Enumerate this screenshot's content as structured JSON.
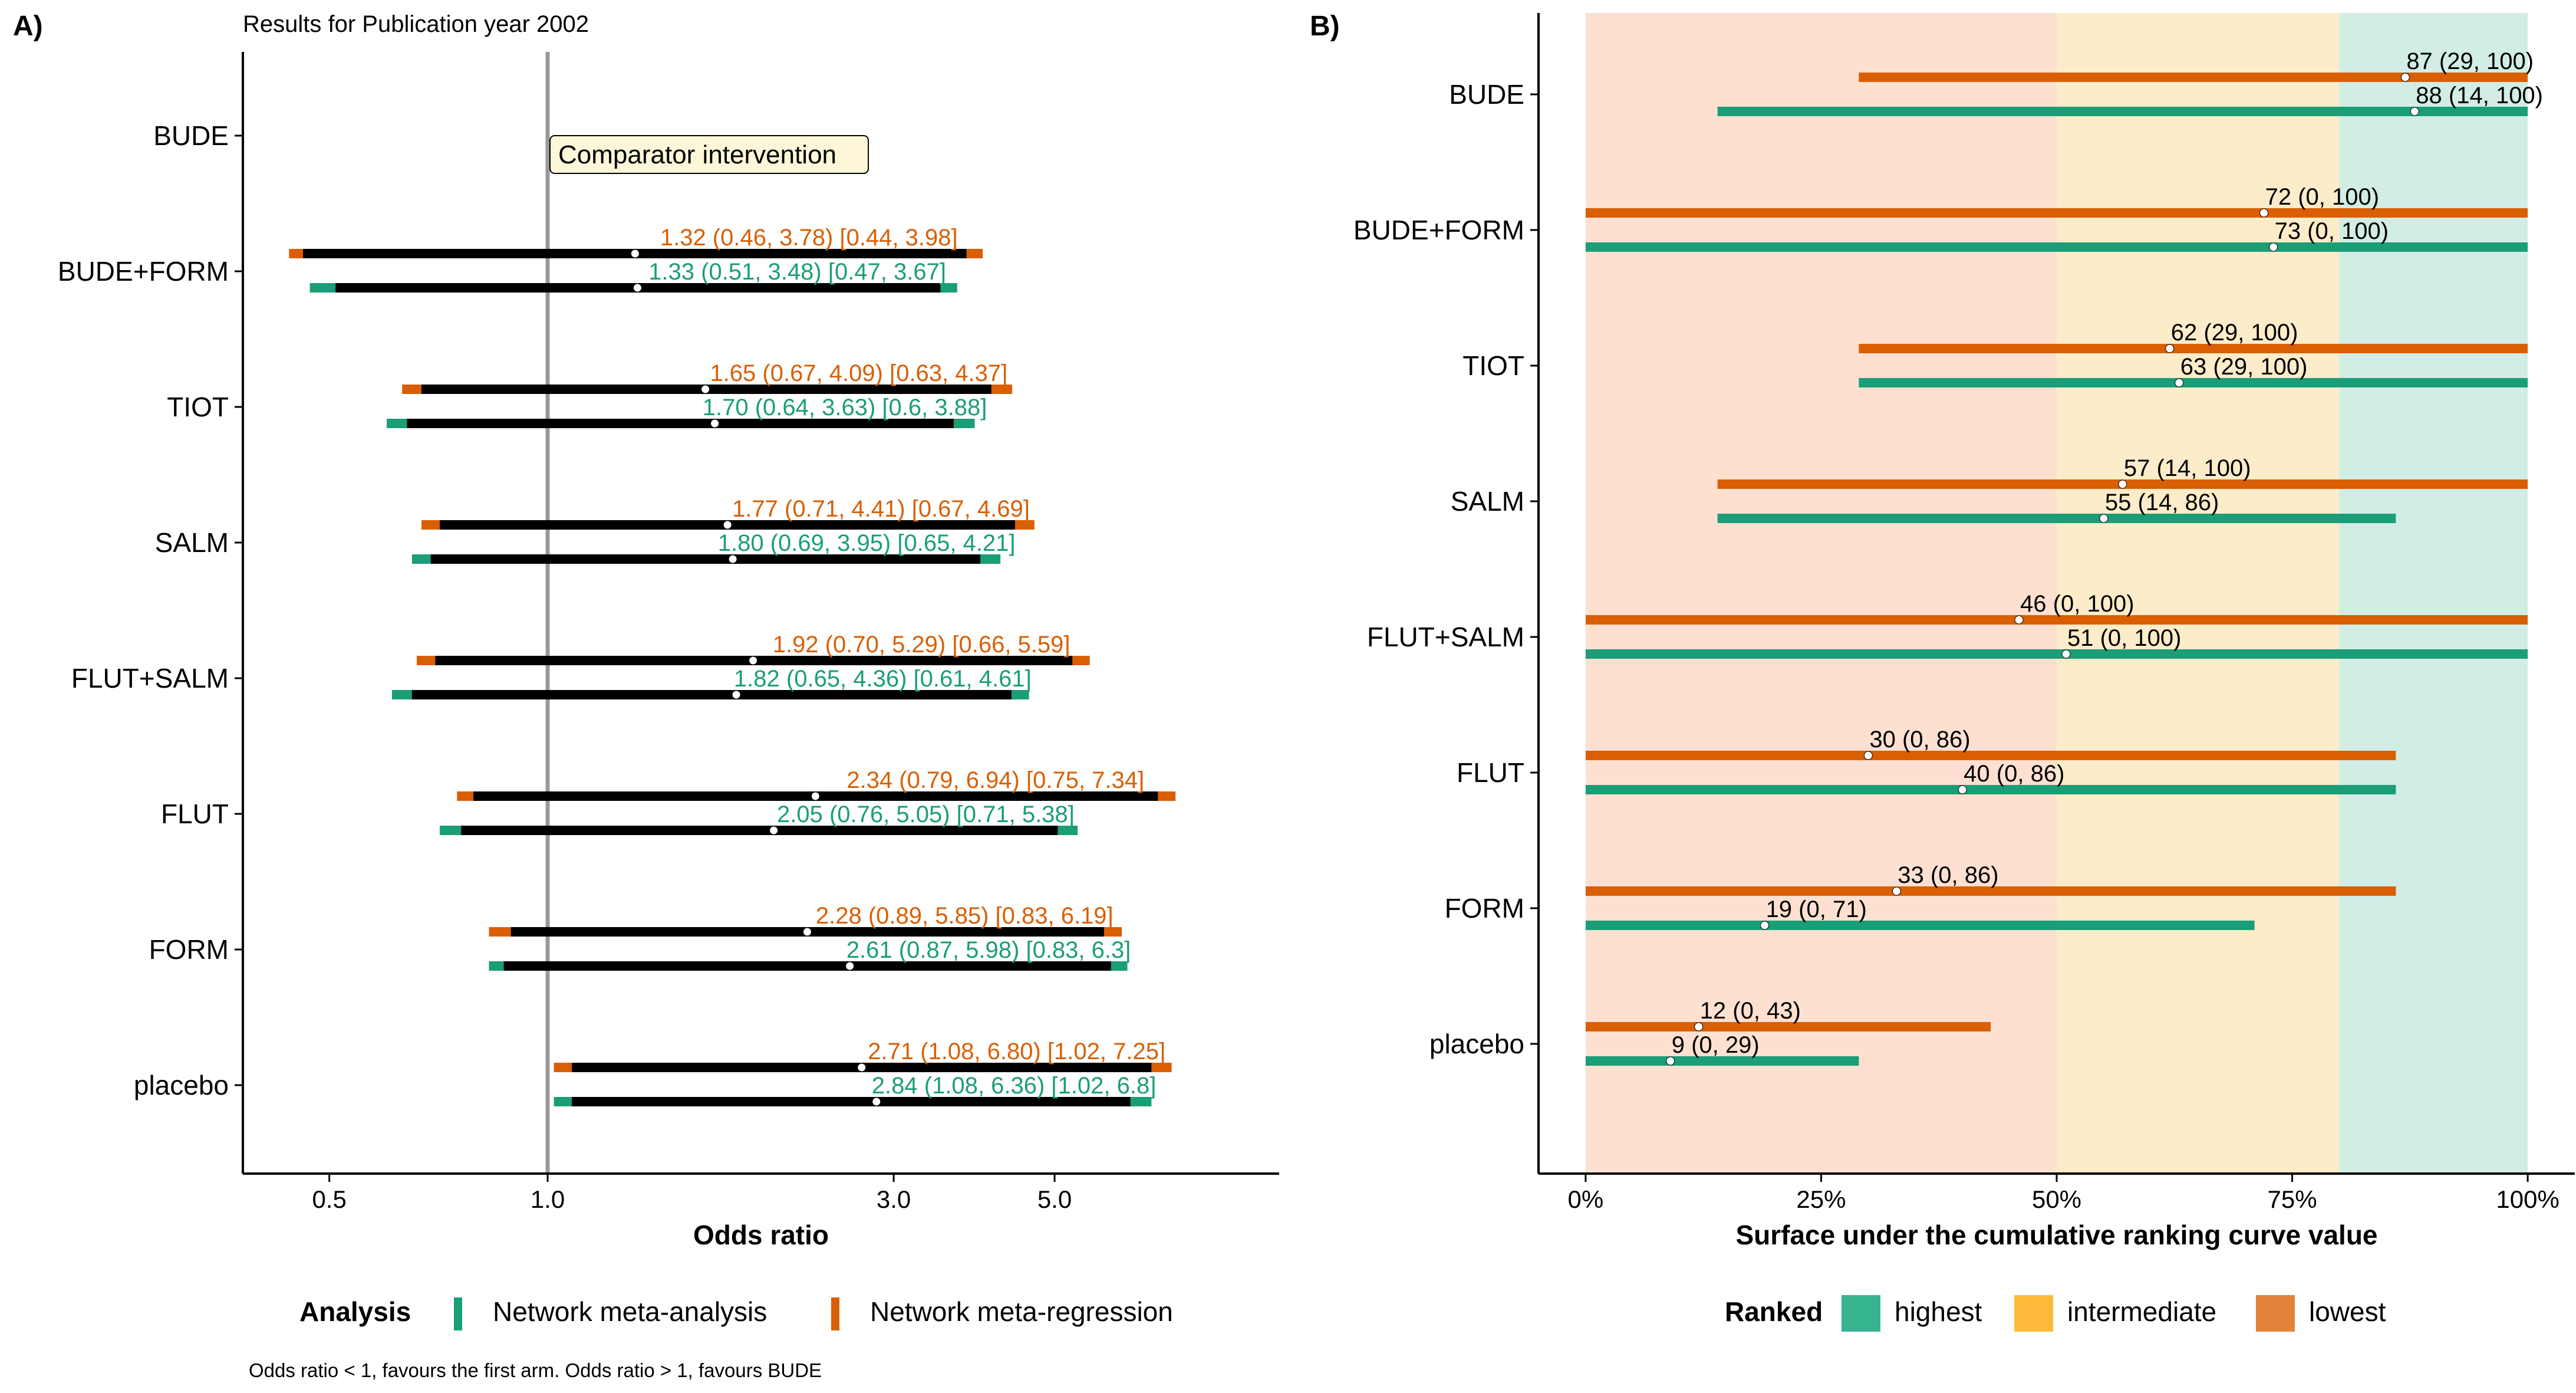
{
  "colors": {
    "nma": "#1a9e77",
    "nmr": "#d95f02",
    "credible": "#000000",
    "highest_zone": "#d1ede5",
    "intermediate_zone": "#fcecc9",
    "lowest_zone": "#fde0d0",
    "highest_key": "#36b38f",
    "intermediate_key": "#fdba3a",
    "lowest_key": "#e3843c",
    "ref_line": "#999999",
    "label_box": "#fdf6d9"
  },
  "panel_a": {
    "tag": "A)",
    "subtitle": "Results for Publication year 2002",
    "xlabel": "Odds ratio",
    "comparator_label": "Comparator intervention",
    "footnote": "Odds ratio < 1, favours the first arm. Odds ratio > 1, favours BUDE"
  },
  "panel_b": {
    "tag": "B)",
    "xlabel": "Surface under the cumulative ranking curve value"
  },
  "legend_a": {
    "title": "Analysis",
    "items": [
      {
        "label": "Network meta-analysis",
        "color_key": "nma"
      },
      {
        "label": "Network meta-regression",
        "color_key": "nmr"
      }
    ]
  },
  "legend_b": {
    "title": "Ranked",
    "items": [
      {
        "label": "highest",
        "color_key": "highest_key"
      },
      {
        "label": "intermediate",
        "color_key": "intermediate_key"
      },
      {
        "label": "lowest",
        "color_key": "lowest_key"
      }
    ]
  },
  "chart_data": [
    {
      "type": "forest",
      "scale": "log",
      "xlim": [
        0.38,
        10.2
      ],
      "xticks": [
        0.5,
        1.0,
        3.0,
        5.0
      ],
      "xtick_labels": [
        "0.5",
        "1.0",
        "3.0",
        "5.0"
      ],
      "reference_value": 1.0,
      "xlabel": "Odds ratio",
      "categories": [
        "BUDE",
        "BUDE+FORM",
        "TIOT",
        "SALM",
        "FLUT+SALM",
        "FLUT",
        "FORM",
        "placebo"
      ],
      "series": [
        {
          "name": "Network meta-regression",
          "color_key": "nmr",
          "points": [
            null,
            {
              "est": 1.32,
              "cri": [
                0.46,
                3.78
              ],
              "pri": [
                0.44,
                3.98
              ],
              "label": "1.32 (0.46, 3.78) [0.44, 3.98]"
            },
            {
              "est": 1.65,
              "cri": [
                0.67,
                4.09
              ],
              "pri": [
                0.63,
                4.37
              ],
              "label": "1.65 (0.67, 4.09) [0.63, 4.37]"
            },
            {
              "est": 1.77,
              "cri": [
                0.71,
                4.41
              ],
              "pri": [
                0.67,
                4.69
              ],
              "label": "1.77 (0.71, 4.41) [0.67, 4.69]"
            },
            {
              "est": 1.92,
              "cri": [
                0.7,
                5.29
              ],
              "pri": [
                0.66,
                5.59
              ],
              "label": "1.92 (0.70, 5.29) [0.66, 5.59]"
            },
            {
              "est": 2.34,
              "cri": [
                0.79,
                6.94
              ],
              "pri": [
                0.75,
                7.34
              ],
              "label": "2.34 (0.79, 6.94) [0.75, 7.34]"
            },
            {
              "est": 2.28,
              "cri": [
                0.89,
                5.85
              ],
              "pri": [
                0.83,
                6.19
              ],
              "label": "2.28 (0.89, 5.85) [0.83, 6.19]"
            },
            {
              "est": 2.71,
              "cri": [
                1.08,
                6.8
              ],
              "pri": [
                1.02,
                7.25
              ],
              "label": "2.71 (1.08, 6.80) [1.02, 7.25]"
            }
          ]
        },
        {
          "name": "Network meta-analysis",
          "color_key": "nma",
          "points": [
            null,
            {
              "est": 1.33,
              "cri": [
                0.51,
                3.48
              ],
              "pri": [
                0.47,
                3.67
              ],
              "label": "1.33 (0.51, 3.48) [0.47, 3.67]"
            },
            {
              "est": 1.7,
              "cri": [
                0.64,
                3.63
              ],
              "pri": [
                0.6,
                3.88
              ],
              "label": "1.70 (0.64, 3.63) [0.6, 3.88]"
            },
            {
              "est": 1.8,
              "cri": [
                0.69,
                3.95
              ],
              "pri": [
                0.65,
                4.21
              ],
              "label": "1.80 (0.69, 3.95) [0.65, 4.21]"
            },
            {
              "est": 1.82,
              "cri": [
                0.65,
                4.36
              ],
              "pri": [
                0.61,
                4.61
              ],
              "label": "1.82 (0.65, 4.36) [0.61, 4.61]"
            },
            {
              "est": 2.05,
              "cri": [
                0.76,
                5.05
              ],
              "pri": [
                0.71,
                5.38
              ],
              "label": "2.05 (0.76, 5.05) [0.71, 5.38]"
            },
            {
              "est": 2.61,
              "cri": [
                0.87,
                5.98
              ],
              "pri": [
                0.83,
                6.3
              ],
              "label": "2.61 (0.87, 5.98) [0.83, 6.3]"
            },
            {
              "est": 2.84,
              "cri": [
                1.08,
                6.36
              ],
              "pri": [
                1.02,
                6.8
              ],
              "label": "2.84 (1.08, 6.36) [1.02, 6.8]"
            }
          ]
        }
      ]
    },
    {
      "type": "bar",
      "orientation": "horizontal",
      "xlim": [
        -5,
        105
      ],
      "xticks": [
        0,
        25,
        50,
        75,
        100
      ],
      "xtick_labels": [
        "0%",
        "25%",
        "50%",
        "75%",
        "100%"
      ],
      "xlabel": "Surface under the cumulative ranking curve value",
      "zones": [
        {
          "name": "lowest",
          "from": 0,
          "to": 50
        },
        {
          "name": "intermediate",
          "from": 50,
          "to": 80
        },
        {
          "name": "highest",
          "from": 80,
          "to": 100
        }
      ],
      "categories": [
        "BUDE",
        "BUDE+FORM",
        "TIOT",
        "SALM",
        "FLUT+SALM",
        "FLUT",
        "FORM",
        "placebo"
      ],
      "series": [
        {
          "name": "Network meta-regression",
          "color_key": "nmr",
          "points": [
            {
              "value": 87,
              "range": [
                29,
                100
              ],
              "label": "87 (29, 100)"
            },
            {
              "value": 72,
              "range": [
                0,
                100
              ],
              "label": "72 (0, 100)"
            },
            {
              "value": 62,
              "range": [
                29,
                100
              ],
              "label": "62 (29, 100)"
            },
            {
              "value": 57,
              "range": [
                14,
                100
              ],
              "label": "57 (14, 100)"
            },
            {
              "value": 46,
              "range": [
                0,
                100
              ],
              "label": "46 (0, 100)"
            },
            {
              "value": 30,
              "range": [
                0,
                86
              ],
              "label": "30 (0, 86)"
            },
            {
              "value": 33,
              "range": [
                0,
                86
              ],
              "label": "33 (0, 86)"
            },
            {
              "value": 12,
              "range": [
                0,
                43
              ],
              "label": "12 (0, 43)"
            }
          ]
        },
        {
          "name": "Network meta-analysis",
          "color_key": "nma",
          "points": [
            {
              "value": 88,
              "range": [
                14,
                100
              ],
              "label": "88 (14, 100)"
            },
            {
              "value": 73,
              "range": [
                0,
                100
              ],
              "label": "73 (0, 100)"
            },
            {
              "value": 63,
              "range": [
                29,
                100
              ],
              "label": "63 (29, 100)"
            },
            {
              "value": 55,
              "range": [
                14,
                86
              ],
              "label": "55 (14, 86)"
            },
            {
              "value": 51,
              "range": [
                0,
                100
              ],
              "label": "51 (0, 100)"
            },
            {
              "value": 40,
              "range": [
                0,
                86
              ],
              "label": "40 (0, 86)"
            },
            {
              "value": 19,
              "range": [
                0,
                71
              ],
              "label": "19 (0, 71)"
            },
            {
              "value": 9,
              "range": [
                0,
                29
              ],
              "label": "9 (0, 29)"
            }
          ]
        }
      ]
    }
  ]
}
